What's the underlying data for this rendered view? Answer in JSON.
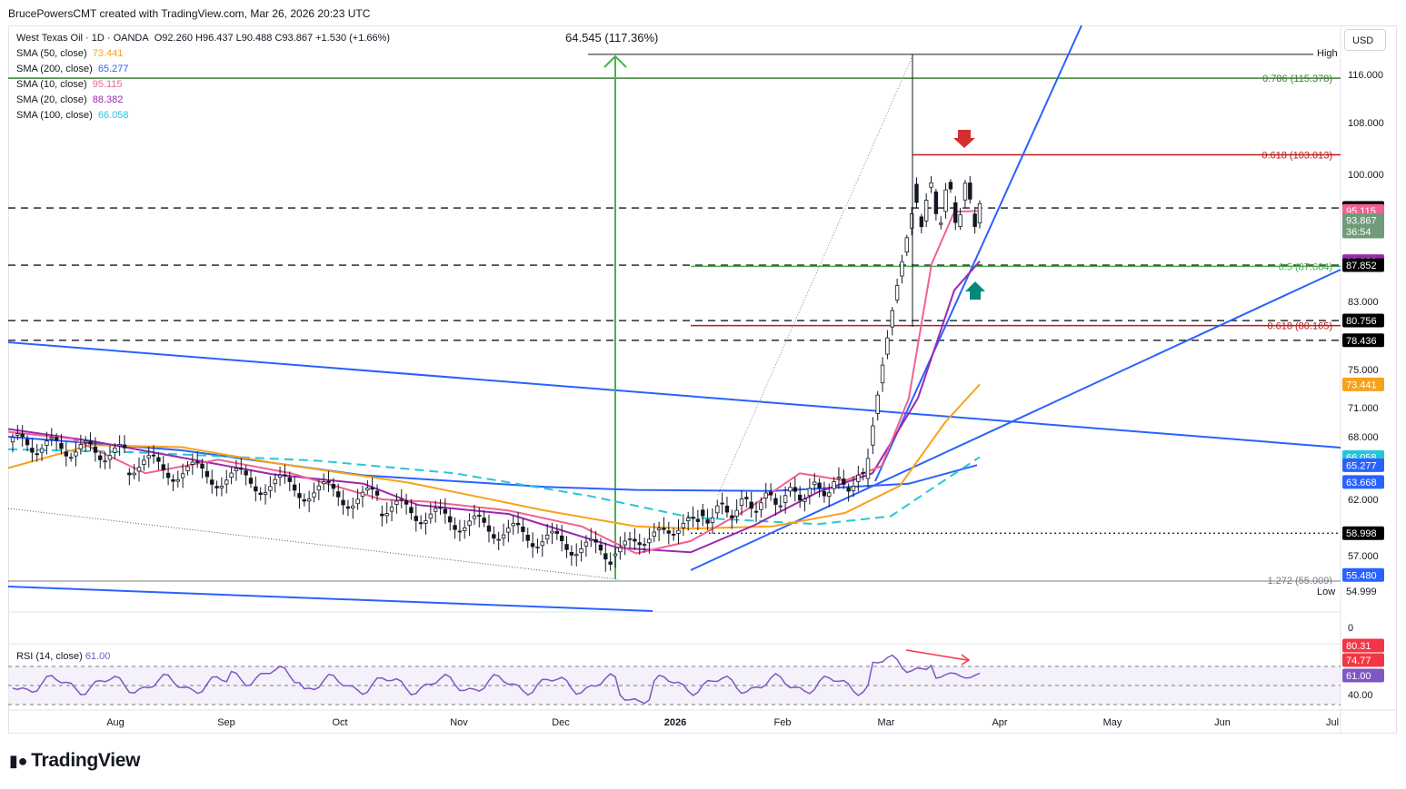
{
  "header": {
    "text": "BrucePowersCMT created with TradingView.com, Mar 26, 2026 20:23 UTC"
  },
  "legend": {
    "symbol": "West Texas Oil · 1D · OANDA",
    "ohlc": "O92.260 H96.437 L90.488 C93.867 +1.530 (+1.66%)",
    "smas": [
      {
        "label": "SMA (50, close)",
        "value": "73.441",
        "color": "#f7a21b"
      },
      {
        "label": "SMA (200, close)",
        "value": "65.277",
        "color": "#2962ff"
      },
      {
        "label": "SMA (10, close)",
        "value": "95.115",
        "color": "#f06292"
      },
      {
        "label": "SMA (20, close)",
        "value": "88.382",
        "color": "#9c27b0"
      },
      {
        "label": "SMA (100, close)",
        "value": "66.058",
        "color": "#26c6da"
      }
    ]
  },
  "currency": "USD",
  "measure_label": "64.545 (117.36%)",
  "rsi": {
    "label": "RSI (14, close)",
    "value": "61.00",
    "axis_labels": [
      "40.00"
    ],
    "tags": [
      {
        "text": "80.31",
        "bg": "#f23645"
      },
      {
        "text": "74.77",
        "bg": "#f23645"
      },
      {
        "text": "61.00",
        "bg": "#7e57c2"
      }
    ]
  },
  "logo": "TradingView",
  "chart_data": {
    "type": "candlestick",
    "title": "West Texas Oil · 1D · OANDA",
    "x_labels": [
      "Aug",
      "Sep",
      "Oct",
      "Nov",
      "Dec",
      "2026",
      "Feb",
      "Mar",
      "Apr",
      "May",
      "Jun",
      "Jul"
    ],
    "y_labels": [
      "116.000",
      "108.000",
      "100.000",
      "83.000",
      "75.000",
      "71.000",
      "68.000",
      "62.000",
      "57.000",
      "0"
    ],
    "ylim": [
      52.5,
      120
    ],
    "last": {
      "open": 92.26,
      "high": 96.437,
      "low": 90.488,
      "close": 93.867
    },
    "price_tags": [
      {
        "text": "High",
        "value": 119.544,
        "bg": "#ffffff",
        "fg": "#131722"
      },
      {
        "text": "95.501",
        "value": 95.501,
        "bg": "#000000",
        "fg": "#ffffff"
      },
      {
        "text": "95.115",
        "value": 95.115,
        "bg": "#f06292",
        "fg": "#ffffff"
      },
      {
        "text": "93.867",
        "value": 93.867,
        "bg": "#6f9b78",
        "fg": "#ffffff"
      },
      {
        "text": "36:54",
        "value": 92.6,
        "bg": "#6f9b78",
        "fg": "#ffffff"
      },
      {
        "text": "88.382",
        "value": 88.382,
        "bg": "#9c27b0",
        "fg": "#ffffff"
      },
      {
        "text": "87.852",
        "value": 87.852,
        "bg": "#000000",
        "fg": "#ffffff"
      },
      {
        "text": "80.756",
        "value": 80.756,
        "bg": "#000000",
        "fg": "#ffffff"
      },
      {
        "text": "78.436",
        "value": 78.436,
        "bg": "#000000",
        "fg": "#ffffff"
      },
      {
        "text": "73.441",
        "value": 73.441,
        "bg": "#f7a21b",
        "fg": "#ffffff"
      },
      {
        "text": "66.058",
        "value": 66.058,
        "bg": "#26c6da",
        "fg": "#ffffff"
      },
      {
        "text": "65.277",
        "value": 65.277,
        "bg": "#2962ff",
        "fg": "#ffffff"
      },
      {
        "text": "63.668",
        "value": 63.668,
        "bg": "#2962ff",
        "fg": "#ffffff"
      },
      {
        "text": "58.998",
        "value": 58.998,
        "bg": "#000000",
        "fg": "#ffffff"
      },
      {
        "text": "55.480",
        "value": 55.48,
        "bg": "#2962ff",
        "fg": "#ffffff"
      },
      {
        "text": "Low",
        "value": 54.999,
        "bg": "#ffffff",
        "fg": "#131722"
      },
      {
        "text": "54.999",
        "value": 54.999,
        "bg": "#ffffff",
        "fg": "#131722"
      }
    ],
    "fib_labels": [
      {
        "text": "0.786 (115.378)",
        "value": 115.378,
        "color": "#3d7d33"
      },
      {
        "text": "0.618 (103.013)",
        "value": 103.013,
        "color": "#b71c1c"
      },
      {
        "text": "0.5 (87.684)",
        "value": 87.684,
        "color": "#4caf50"
      },
      {
        "text": "0.618 (80.165)",
        "value": 80.165,
        "color": "#b71c1c"
      },
      {
        "text": "1.272 (55.009)",
        "value": 55.009,
        "color": "#787b86"
      }
    ],
    "horizontal_levels": [
      95.501,
      87.852,
      80.756,
      78.436,
      58.998
    ],
    "swing_high": 119.544,
    "swing_low": 54.999,
    "colors": {
      "up": "#089981",
      "down": "#f23645",
      "candle": "#131722"
    }
  }
}
